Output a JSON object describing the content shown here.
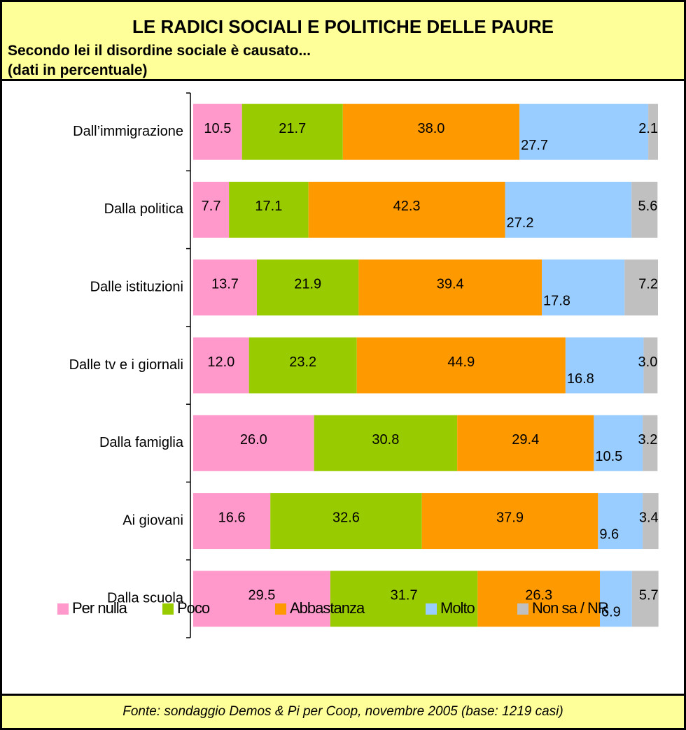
{
  "chart_data": {
    "type": "stacked-barh",
    "title": "LE RADICI SOCIALI E POLITICHE DELLE PAURE",
    "subtitle": [
      "Secondo lei il disordine sociale è causato...",
      "(dati in percentuale)"
    ],
    "source": "Fonte: sondaggio Demos & Pi per Coop, novembre 2005 (base: 1219 casi)",
    "categories": [
      "Dall’immigrazione",
      "Dalla politica",
      "Dalle istituzioni",
      "Dalle tv e i giornali",
      "Dalla famiglia",
      "Ai giovani",
      "Dalla scuola"
    ],
    "xlim": [
      0,
      100
    ],
    "legend": "bottom",
    "series": [
      {
        "name": "Per nulla",
        "color": "#ff99cc",
        "values": [
          10.5,
          7.7,
          13.7,
          12.0,
          26.0,
          16.6,
          29.5
        ],
        "value_labels": [
          "10.5",
          "7.7",
          "13.7",
          "12.0",
          "26.0",
          "16.6",
          "29.5"
        ]
      },
      {
        "name": "Poco",
        "color": "#99cc00",
        "values": [
          21.7,
          17.1,
          21.9,
          23.2,
          30.8,
          32.6,
          31.7
        ],
        "value_labels": [
          "21.7",
          "17.1",
          "21.9",
          "23.2",
          "30.8",
          "32.6",
          "31.7"
        ]
      },
      {
        "name": "Abbastanza",
        "color": "#ff9900",
        "values": [
          38.0,
          42.3,
          39.4,
          44.9,
          29.4,
          37.9,
          26.3
        ],
        "value_labels": [
          "38.0",
          "42.3",
          "39.4",
          "44.9",
          "29.4",
          "37.9",
          "26.3"
        ]
      },
      {
        "name": "Molto",
        "color": "#99ccff",
        "values": [
          27.7,
          27.2,
          17.8,
          16.8,
          10.5,
          9.6,
          6.9
        ],
        "value_labels": [
          "27.7",
          "27.2",
          "17.8",
          "16.8",
          "10.5",
          "9.6",
          "6.9"
        ]
      },
      {
        "name": "Non sa / NR",
        "color": "#c0c0c0",
        "values": [
          2.1,
          5.6,
          7.2,
          3.0,
          3.2,
          3.4,
          5.7
        ],
        "value_labels": [
          "2.1",
          "5.6",
          "7.2",
          "3.0",
          "3.2",
          "3.4",
          "5.7"
        ]
      }
    ]
  }
}
